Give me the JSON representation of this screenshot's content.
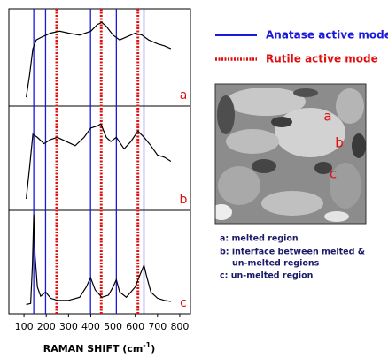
{
  "chart_data": {
    "type": "line",
    "xlabel": "RAMAN SHIFT (cm",
    "xlabel_superscript": "-1",
    "xlabel_end": ")",
    "xlim": [
      32,
      848
    ],
    "xticks": [
      100,
      200,
      300,
      400,
      500,
      600,
      700,
      800
    ],
    "ylim": [
      0,
      1
    ],
    "reference_lines": [
      {
        "name": "Anatase active mode",
        "color": "#1a1adc",
        "style": "solid",
        "x": [
          144,
          197,
          399,
          515,
          639
        ]
      },
      {
        "name": "Rutile active mode",
        "color": "#e01010",
        "style": "dotted",
        "x": [
          247,
          447,
          612
        ]
      }
    ],
    "series": [
      {
        "label": "a",
        "color": "#000000",
        "x": [
          110,
          125,
          140,
          155,
          180,
          220,
          260,
          300,
          350,
          400,
          430,
          450,
          470,
          500,
          530,
          560,
          600,
          630,
          660,
          700,
          730,
          760
        ],
        "values": [
          0.09,
          0.32,
          0.59,
          0.68,
          0.71,
          0.75,
          0.77,
          0.75,
          0.73,
          0.77,
          0.84,
          0.86,
          0.82,
          0.73,
          0.68,
          0.71,
          0.75,
          0.73,
          0.68,
          0.64,
          0.62,
          0.59
        ]
      },
      {
        "label": "b",
        "color": "#000000",
        "x": [
          110,
          125,
          140,
          160,
          190,
          220,
          250,
          290,
          330,
          370,
          400,
          430,
          445,
          470,
          490,
          515,
          550,
          580,
          612,
          640,
          670,
          700,
          730,
          760
        ],
        "values": [
          0.11,
          0.41,
          0.73,
          0.7,
          0.64,
          0.68,
          0.7,
          0.66,
          0.62,
          0.7,
          0.79,
          0.81,
          0.83,
          0.7,
          0.66,
          0.7,
          0.59,
          0.66,
          0.76,
          0.7,
          0.62,
          0.53,
          0.51,
          0.47
        ]
      },
      {
        "label": "c",
        "color": "#000000",
        "x": [
          110,
          130,
          138,
          144,
          150,
          160,
          175,
          197,
          220,
          250,
          300,
          350,
          380,
          399,
          420,
          450,
          480,
          500,
          515,
          530,
          560,
          600,
          620,
          639,
          650,
          670,
          700,
          730,
          760
        ],
        "values": [
          0.09,
          0.1,
          0.47,
          0.96,
          0.56,
          0.26,
          0.17,
          0.21,
          0.15,
          0.13,
          0.13,
          0.16,
          0.26,
          0.35,
          0.23,
          0.16,
          0.18,
          0.26,
          0.33,
          0.21,
          0.16,
          0.26,
          0.37,
          0.47,
          0.37,
          0.21,
          0.15,
          0.13,
          0.12
        ]
      }
    ],
    "micrograph_labels": [
      "a",
      "b",
      "c"
    ],
    "notes": [
      "a: melted region",
      "b: interface between melted &",
      "un-melted regions",
      "c: un-melted region"
    ]
  }
}
